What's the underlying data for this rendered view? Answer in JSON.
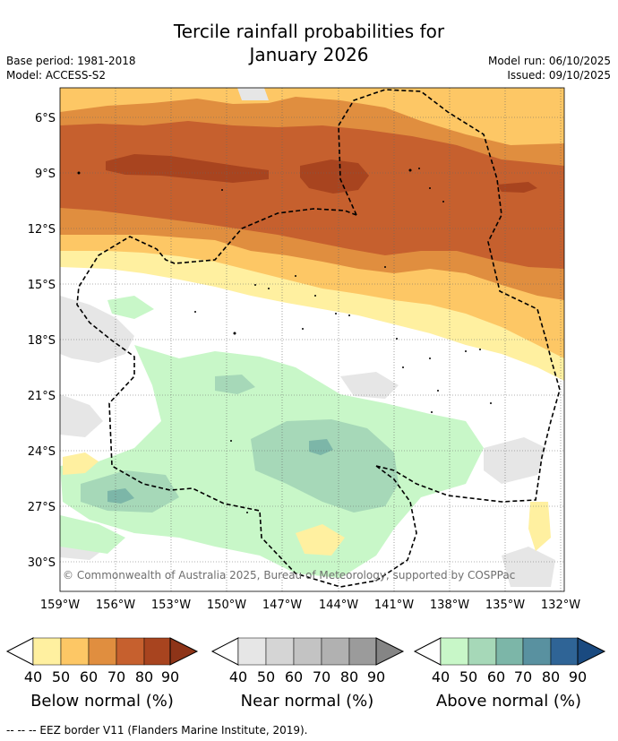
{
  "header": {
    "title_line1": "Tercile rainfall probabilities for",
    "title_line2": "January 2026",
    "base_period": "Base period: 1981-2018",
    "model": "Model: ACCESS-S2",
    "model_run": "Model run: 06/10/2025",
    "issued": "Issued: 09/10/2025"
  },
  "map": {
    "lat_ticks": [
      "6°S",
      "9°S",
      "12°S",
      "15°S",
      "18°S",
      "21°S",
      "24°S",
      "27°S",
      "30°S"
    ],
    "lon_ticks": [
      "159°W",
      "156°W",
      "153°W",
      "150°W",
      "147°W",
      "144°W",
      "141°W",
      "138°W",
      "135°W",
      "132°W"
    ],
    "copyright": "© Commonwealth of Australia 2025, Bureau of Meteorology, supported by COSPPac"
  },
  "colorbars": [
    {
      "title": "Below normal (%)",
      "ticks": [
        "40",
        "50",
        "60",
        "70",
        "80",
        "90"
      ],
      "colors": [
        "#fff0a0",
        "#fdc765",
        "#e08e3f",
        "#c6602e",
        "#a8441f",
        "#8e3418"
      ]
    },
    {
      "title": "Near normal (%)",
      "ticks": [
        "40",
        "50",
        "60",
        "70",
        "80",
        "90"
      ],
      "colors": [
        "#e6e6e6",
        "#d5d5d5",
        "#c3c3c3",
        "#b1b1b1",
        "#9b9b9b",
        "#858585"
      ]
    },
    {
      "title": "Above normal (%)",
      "ticks": [
        "40",
        "50",
        "60",
        "70",
        "80",
        "90"
      ],
      "colors": [
        "#c8f7c8",
        "#a6d8b8",
        "#7cb6a8",
        "#5991a0",
        "#2f6496",
        "#1a4a80"
      ]
    }
  ],
  "footer": {
    "text": "--  --  -- EEZ border V11 (Flanders Marine Institute, 2019)."
  },
  "colors": {
    "grid": "#666666",
    "eez": "#000000"
  }
}
